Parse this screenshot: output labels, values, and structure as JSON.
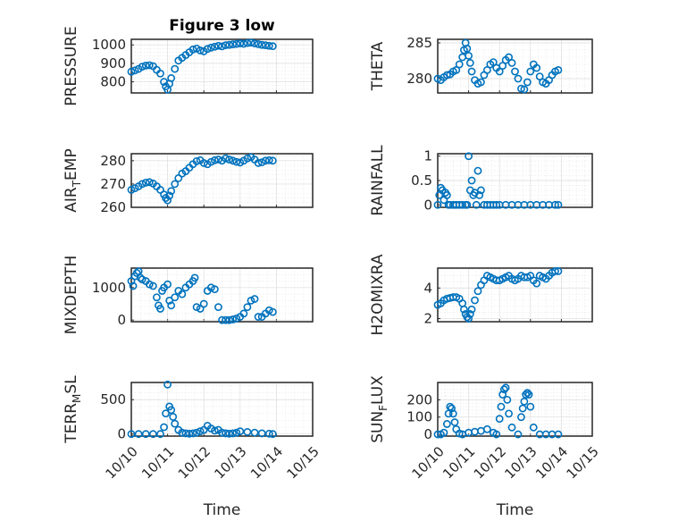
{
  "chart_data": [
    {
      "type": "scatter",
      "title": "Figure 3 low",
      "ylabel": "PRESSURE",
      "ylim": [
        740,
        1030
      ],
      "yticks": [
        800,
        900,
        1000
      ],
      "ytick_labels": [
        "800",
        "900",
        "1000"
      ],
      "xlim": [
        0,
        5
      ],
      "xticks": [
        0,
        1,
        2,
        3,
        4,
        5
      ],
      "xtick_labels": [],
      "x": [
        0.0,
        0.1,
        0.2,
        0.3,
        0.4,
        0.5,
        0.6,
        0.7,
        0.8,
        0.9,
        0.95,
        1.0,
        1.05,
        1.1,
        1.2,
        1.3,
        1.4,
        1.5,
        1.6,
        1.7,
        1.8,
        1.9,
        2.0,
        2.1,
        2.2,
        2.3,
        2.4,
        2.5,
        2.6,
        2.7,
        2.8,
        2.9,
        3.0,
        3.1,
        3.2,
        3.3,
        3.4,
        3.5,
        3.6,
        3.7,
        3.8,
        3.9
      ],
      "y": [
        855,
        862,
        870,
        882,
        888,
        890,
        885,
        865,
        845,
        800,
        775,
        758,
        790,
        820,
        870,
        915,
        930,
        945,
        960,
        975,
        980,
        970,
        965,
        978,
        985,
        990,
        995,
        992,
        998,
        1000,
        1003,
        1005,
        1008,
        1006,
        1010,
        1012,
        1008,
        1004,
        1000,
        998,
        995,
        993
      ]
    },
    {
      "type": "scatter",
      "title": "",
      "ylabel": "THETA",
      "ylim": [
        278,
        285.5
      ],
      "yticks": [
        280,
        285
      ],
      "ytick_labels": [
        "280",
        "285"
      ],
      "xlim": [
        0,
        5
      ],
      "xticks": [
        0,
        1,
        2,
        3,
        4,
        5
      ],
      "xtick_labels": [],
      "x": [
        0.0,
        0.1,
        0.2,
        0.3,
        0.4,
        0.5,
        0.6,
        0.7,
        0.8,
        0.85,
        0.9,
        0.95,
        1.0,
        1.05,
        1.1,
        1.2,
        1.3,
        1.4,
        1.5,
        1.6,
        1.7,
        1.8,
        1.9,
        2.0,
        2.1,
        2.2,
        2.3,
        2.4,
        2.5,
        2.6,
        2.7,
        2.8,
        2.9,
        3.0,
        3.1,
        3.2,
        3.3,
        3.4,
        3.5,
        3.6,
        3.7,
        3.8,
        3.9
      ],
      "y": [
        280.0,
        279.8,
        280.2,
        280.5,
        280.6,
        281.0,
        281.2,
        282.0,
        283.0,
        284.0,
        285.0,
        284.2,
        283.2,
        282.2,
        281.0,
        279.8,
        279.3,
        279.5,
        280.5,
        281.2,
        282.0,
        282.3,
        281.5,
        281.0,
        281.8,
        282.6,
        283.0,
        282.2,
        281.0,
        280.0,
        278.6,
        278.5,
        279.5,
        281.0,
        282.0,
        281.5,
        280.3,
        279.5,
        279.3,
        279.8,
        280.5,
        281.0,
        281.2
      ]
    },
    {
      "type": "scatter",
      "title": "",
      "ylabel": "AIR_TEMP",
      "ylim": [
        260,
        283
      ],
      "yticks": [
        260,
        270,
        280
      ],
      "ytick_labels": [
        "260",
        "270",
        "280"
      ],
      "xlim": [
        0,
        5
      ],
      "xticks": [
        0,
        1,
        2,
        3,
        4,
        5
      ],
      "xtick_labels": [],
      "x": [
        0.0,
        0.1,
        0.2,
        0.3,
        0.4,
        0.5,
        0.6,
        0.7,
        0.8,
        0.9,
        0.95,
        1.0,
        1.05,
        1.1,
        1.2,
        1.3,
        1.4,
        1.5,
        1.6,
        1.7,
        1.8,
        1.9,
        2.0,
        2.1,
        2.2,
        2.3,
        2.4,
        2.5,
        2.6,
        2.7,
        2.8,
        2.9,
        3.0,
        3.1,
        3.2,
        3.3,
        3.4,
        3.5,
        3.6,
        3.7,
        3.8,
        3.9
      ],
      "y": [
        267.5,
        268.2,
        269.0,
        270.0,
        270.6,
        270.8,
        270.2,
        269.0,
        267.5,
        265.5,
        264.0,
        263.0,
        265.0,
        267.0,
        270.0,
        272.5,
        274.5,
        275.5,
        277.0,
        278.5,
        279.8,
        280.2,
        279.0,
        278.5,
        279.5,
        280.2,
        280.5,
        280.0,
        281.0,
        280.5,
        280.0,
        279.5,
        279.2,
        280.0,
        281.0,
        281.5,
        280.5,
        279.0,
        279.3,
        280.0,
        280.2,
        280.0
      ]
    },
    {
      "type": "scatter",
      "title": "",
      "ylabel": "RAINFALL",
      "ylim": [
        -0.05,
        1.05
      ],
      "yticks": [
        0,
        0.5,
        1
      ],
      "ytick_labels": [
        "0",
        "0.5",
        "1"
      ],
      "xlim": [
        0,
        5
      ],
      "xticks": [
        0,
        1,
        2,
        3,
        4,
        5
      ],
      "xtick_labels": [],
      "x": [
        0.0,
        0.05,
        0.1,
        0.15,
        0.2,
        0.25,
        0.3,
        0.35,
        0.4,
        0.5,
        0.6,
        0.7,
        0.8,
        0.9,
        0.95,
        1.0,
        1.05,
        1.1,
        1.15,
        1.2,
        1.25,
        1.3,
        1.35,
        1.4,
        1.5,
        1.6,
        1.7,
        1.8,
        1.9,
        2.0,
        2.2,
        2.4,
        2.6,
        2.8,
        3.0,
        3.2,
        3.4,
        3.6,
        3.8,
        3.9
      ],
      "y": [
        0.0,
        0.2,
        0.35,
        0.3,
        0.1,
        0.25,
        0.2,
        0.0,
        0.0,
        0.0,
        0.0,
        0.0,
        0.0,
        0.0,
        0.0,
        1.0,
        0.3,
        0.5,
        0.2,
        0.25,
        0.0,
        0.7,
        0.2,
        0.3,
        0.0,
        0.0,
        0.0,
        0.0,
        0.0,
        0.0,
        0.0,
        0.0,
        0.0,
        0.0,
        0.0,
        0.0,
        0.0,
        0.0,
        0.0,
        0.0
      ]
    },
    {
      "type": "scatter",
      "title": "",
      "ylabel": "MIXDEPTH",
      "ylim": [
        -50,
        1600
      ],
      "yticks": [
        0,
        1000
      ],
      "ytick_labels": [
        "0",
        "1000"
      ],
      "xlim": [
        0,
        5
      ],
      "xticks": [
        0,
        1,
        2,
        3,
        4,
        5
      ],
      "xtick_labels": [],
      "x": [
        0.0,
        0.05,
        0.1,
        0.15,
        0.2,
        0.25,
        0.3,
        0.4,
        0.5,
        0.6,
        0.7,
        0.75,
        0.8,
        0.85,
        0.9,
        1.0,
        1.05,
        1.1,
        1.2,
        1.3,
        1.4,
        1.5,
        1.6,
        1.7,
        1.75,
        1.8,
        1.9,
        2.0,
        2.1,
        2.2,
        2.3,
        2.4,
        2.5,
        2.6,
        2.7,
        2.8,
        2.9,
        3.0,
        3.1,
        3.2,
        3.3,
        3.4,
        3.5,
        3.6,
        3.7,
        3.8,
        3.9
      ],
      "y": [
        1200,
        1050,
        1350,
        1450,
        1500,
        1300,
        1250,
        1200,
        1100,
        1050,
        700,
        450,
        350,
        900,
        1000,
        1100,
        600,
        450,
        700,
        900,
        800,
        1000,
        1100,
        1200,
        1300,
        400,
        350,
        500,
        900,
        1000,
        950,
        400,
        0,
        0,
        0,
        20,
        50,
        100,
        200,
        400,
        600,
        650,
        100,
        100,
        200,
        300,
        250
      ]
    },
    {
      "type": "scatter",
      "title": "",
      "ylabel": "H2OMIXRA",
      "ylim": [
        1.8,
        5.3
      ],
      "yticks": [
        2,
        4
      ],
      "ytick_labels": [
        "2",
        "4"
      ],
      "xlim": [
        0,
        5
      ],
      "xticks": [
        0,
        1,
        2,
        3,
        4,
        5
      ],
      "xtick_labels": [],
      "x": [
        0.0,
        0.1,
        0.2,
        0.3,
        0.4,
        0.5,
        0.6,
        0.7,
        0.8,
        0.85,
        0.9,
        0.95,
        1.0,
        1.05,
        1.1,
        1.2,
        1.3,
        1.4,
        1.5,
        1.6,
        1.7,
        1.8,
        1.9,
        2.0,
        2.1,
        2.2,
        2.3,
        2.4,
        2.5,
        2.6,
        2.7,
        2.8,
        2.9,
        3.0,
        3.1,
        3.2,
        3.3,
        3.4,
        3.5,
        3.6,
        3.7,
        3.8,
        3.9
      ],
      "y": [
        2.9,
        3.0,
        3.2,
        3.3,
        3.35,
        3.4,
        3.4,
        3.3,
        3.0,
        2.6,
        2.3,
        2.1,
        2.0,
        2.3,
        2.6,
        3.2,
        3.8,
        4.2,
        4.5,
        4.8,
        4.7,
        4.6,
        4.5,
        4.5,
        4.6,
        4.7,
        4.8,
        4.6,
        4.5,
        4.6,
        4.8,
        4.7,
        4.7,
        4.8,
        4.5,
        4.3,
        4.8,
        4.7,
        4.6,
        4.8,
        5.0,
        5.1,
        5.1
      ]
    },
    {
      "type": "scatter",
      "title": "",
      "ylabel": "TERR_MSL",
      "ylim": [
        -30,
        750
      ],
      "yticks": [
        0,
        500
      ],
      "ytick_labels": [
        "0",
        "500"
      ],
      "xlim": [
        0,
        5
      ],
      "xticks": [
        0,
        1,
        2,
        3,
        4,
        5
      ],
      "xtick_labels": [
        "10/10",
        "10/11",
        "10/12",
        "10/13",
        "10/14",
        "10/15"
      ],
      "xlabel": "Time",
      "x": [
        0.0,
        0.2,
        0.4,
        0.6,
        0.8,
        0.9,
        0.95,
        1.0,
        1.05,
        1.1,
        1.15,
        1.2,
        1.3,
        1.4,
        1.5,
        1.6,
        1.7,
        1.8,
        1.9,
        2.0,
        2.1,
        2.2,
        2.3,
        2.4,
        2.5,
        2.6,
        2.7,
        2.8,
        2.9,
        3.0,
        3.2,
        3.4,
        3.6,
        3.8,
        3.9
      ],
      "y": [
        0,
        0,
        0,
        0,
        0,
        100,
        300,
        720,
        400,
        350,
        250,
        150,
        60,
        20,
        10,
        5,
        10,
        20,
        40,
        60,
        120,
        80,
        50,
        60,
        20,
        10,
        5,
        10,
        20,
        40,
        30,
        20,
        10,
        5,
        0
      ]
    },
    {
      "type": "scatter",
      "title": "",
      "ylabel": "SUN_FLUX",
      "ylim": [
        -10,
        300
      ],
      "yticks": [
        0,
        100,
        200
      ],
      "ytick_labels": [
        "0",
        "100",
        "200"
      ],
      "xlim": [
        0,
        5
      ],
      "xticks": [
        0,
        1,
        2,
        3,
        4,
        5
      ],
      "xtick_labels": [
        "10/10",
        "10/11",
        "10/12",
        "10/13",
        "10/14",
        "10/15"
      ],
      "xlabel": "Time",
      "x": [
        0.0,
        0.1,
        0.2,
        0.3,
        0.35,
        0.4,
        0.45,
        0.5,
        0.55,
        0.6,
        0.7,
        0.8,
        1.0,
        1.2,
        1.4,
        1.6,
        1.8,
        1.9,
        2.0,
        2.05,
        2.1,
        2.15,
        2.2,
        2.25,
        2.3,
        2.4,
        2.6,
        2.7,
        2.75,
        2.8,
        2.85,
        2.9,
        2.95,
        3.0,
        3.1,
        3.3,
        3.5,
        3.7,
        3.9
      ],
      "y": [
        0,
        0,
        10,
        60,
        120,
        160,
        150,
        120,
        70,
        30,
        5,
        0,
        10,
        15,
        20,
        30,
        10,
        0,
        90,
        160,
        230,
        260,
        270,
        200,
        120,
        40,
        0,
        100,
        150,
        190,
        230,
        240,
        230,
        160,
        40,
        0,
        0,
        0,
        0
      ]
    }
  ]
}
